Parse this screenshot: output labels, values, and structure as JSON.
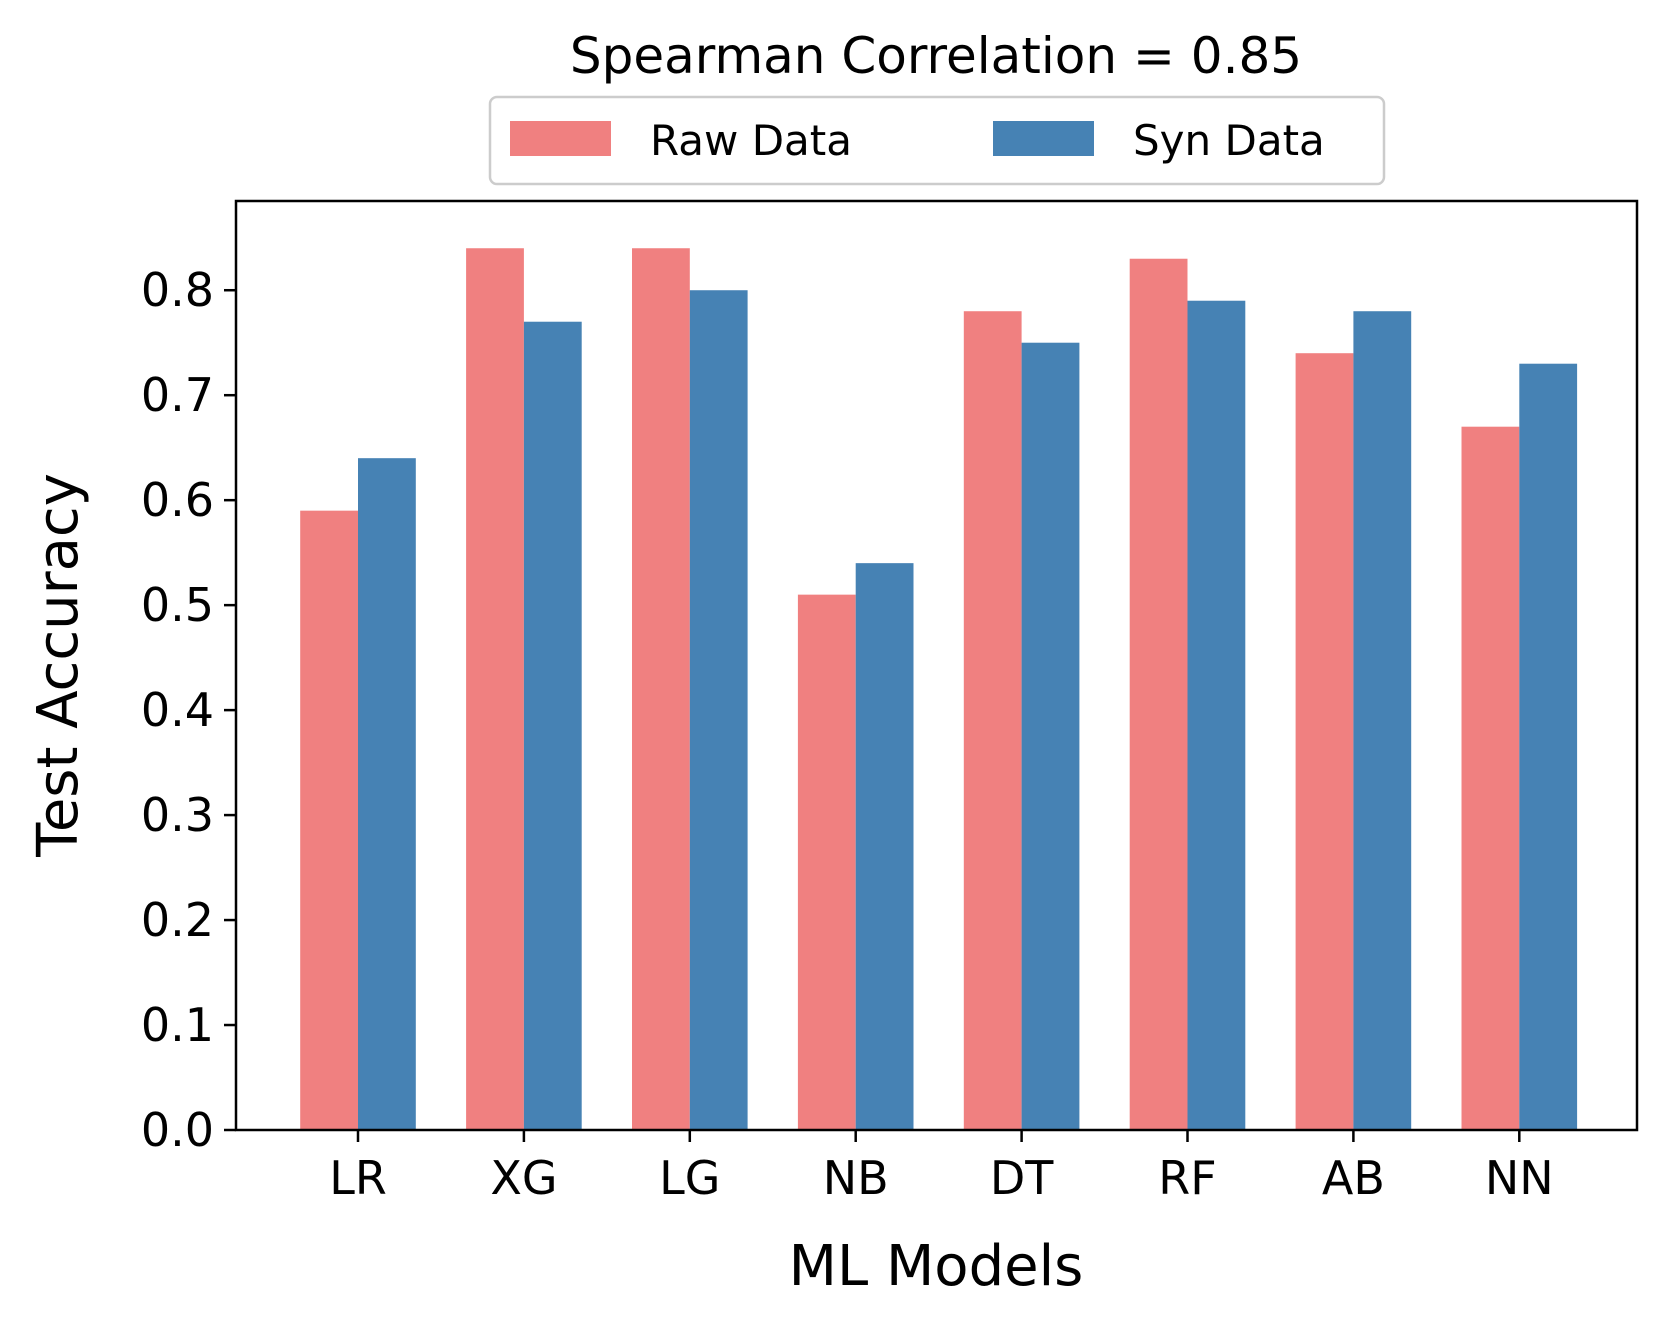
{
  "chart_data": {
    "type": "bar",
    "title": "Spearman Correlation = 0.85",
    "xlabel": "ML Models",
    "ylabel": "Test Accuracy",
    "categories": [
      "LR",
      "XG",
      "LG",
      "NB",
      "DT",
      "RF",
      "AB",
      "NN"
    ],
    "series": [
      {
        "name": "Raw Data",
        "color": "#F08080",
        "values": [
          0.59,
          0.84,
          0.84,
          0.51,
          0.78,
          0.83,
          0.74,
          0.67
        ]
      },
      {
        "name": "Syn Data",
        "color": "#4682B4",
        "values": [
          0.64,
          0.77,
          0.8,
          0.54,
          0.75,
          0.79,
          0.78,
          0.73
        ]
      }
    ],
    "ylim": [
      0,
      0.885
    ],
    "yticks": [
      "0.0",
      "0.1",
      "0.2",
      "0.3",
      "0.4",
      "0.5",
      "0.6",
      "0.7",
      "0.8"
    ],
    "grid": false,
    "legend_position": "top-center"
  }
}
